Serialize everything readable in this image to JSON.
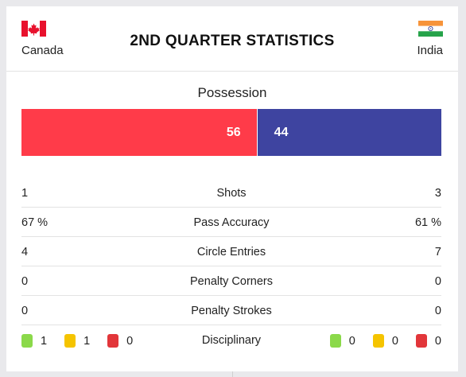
{
  "header": {
    "title": "2ND QUARTER STATISTICS",
    "home_team": "Canada",
    "away_team": "India"
  },
  "possession": {
    "label": "Possession",
    "home": 56,
    "away": 44,
    "home_color": "#ff3b49",
    "away_color": "#3e44a0"
  },
  "stats": [
    {
      "label": "Shots",
      "home": "1",
      "away": "3"
    },
    {
      "label": "Pass Accuracy",
      "home": "67 %",
      "away": "61 %"
    },
    {
      "label": "Circle Entries",
      "home": "4",
      "away": "7"
    },
    {
      "label": "Penalty Corners",
      "home": "0",
      "away": "0"
    },
    {
      "label": "Penalty Strokes",
      "home": "0",
      "away": "0"
    }
  ],
  "disciplinary": {
    "label": "Disciplinary",
    "home": {
      "green": "1",
      "yellow": "1",
      "red": "0"
    },
    "away": {
      "green": "0",
      "yellow": "0",
      "red": "0"
    },
    "colors": {
      "green": "#8bd94a",
      "yellow": "#f5c400",
      "red": "#e2363a"
    }
  }
}
